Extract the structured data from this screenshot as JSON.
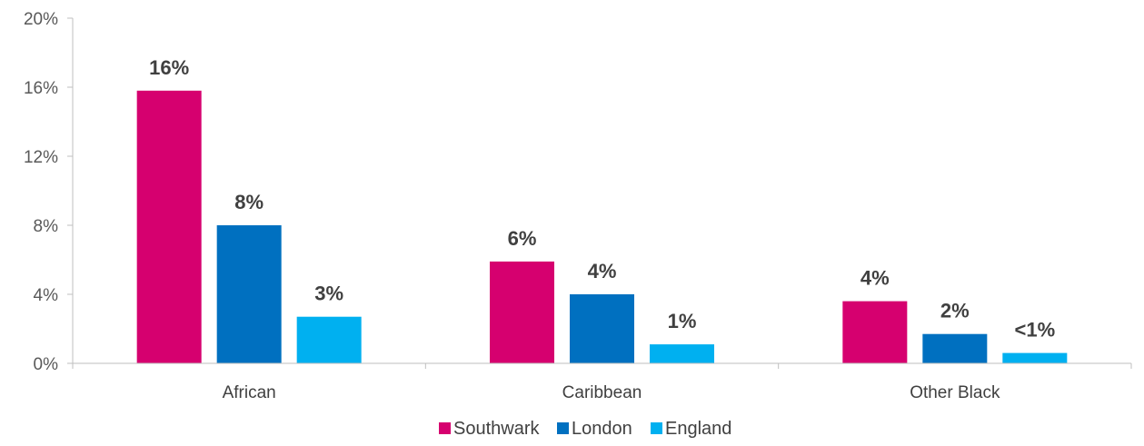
{
  "chart_data": {
    "type": "bar",
    "categories": [
      "African",
      "Caribbean",
      "Other Black"
    ],
    "series": [
      {
        "name": "Southwark",
        "color": "#D6006F",
        "values": [
          15.8,
          5.9,
          3.6
        ],
        "labels": [
          "16%",
          "6%",
          "4%"
        ]
      },
      {
        "name": "London",
        "color": "#0070C0",
        "values": [
          8.0,
          4.0,
          1.7
        ],
        "labels": [
          "8%",
          "4%",
          "2%"
        ]
      },
      {
        "name": "England",
        "color": "#00B0F0",
        "values": [
          2.7,
          1.1,
          0.6
        ],
        "labels": [
          "3%",
          "1%",
          "<1%"
        ]
      }
    ],
    "y_ticks": [
      {
        "value": 0,
        "label": "0%"
      },
      {
        "value": 4,
        "label": "4%"
      },
      {
        "value": 8,
        "label": "8%"
      },
      {
        "value": 12,
        "label": "12%"
      },
      {
        "value": 16,
        "label": "16%"
      },
      {
        "value": 20,
        "label": "20%"
      }
    ],
    "ylim": [
      0,
      20
    ],
    "grid": false,
    "legend_position": "bottom-center"
  }
}
